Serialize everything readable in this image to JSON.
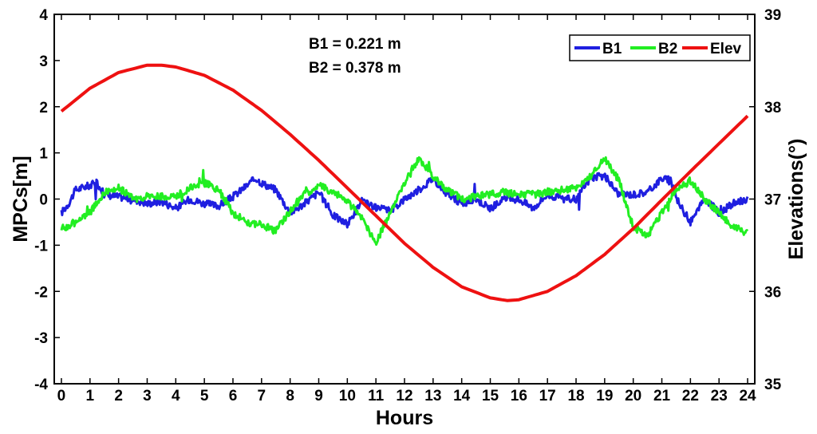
{
  "chart_data": {
    "type": "line",
    "xlabel": "Hours",
    "ylabel_left": "MPCs[m]",
    "ylabel_right": "Elevations(°)",
    "xlim": [
      -0.25,
      24.25
    ],
    "ylim_left": [
      -4,
      4
    ],
    "ylim_right": [
      35,
      39
    ],
    "xticks": [
      "0",
      "1",
      "2",
      "3",
      "4",
      "5",
      "6",
      "7",
      "8",
      "9",
      "10",
      "11",
      "12",
      "13",
      "14",
      "15",
      "16",
      "17",
      "18",
      "19",
      "20",
      "21",
      "22",
      "23",
      "24"
    ],
    "yticks_left": [
      "4",
      "3",
      "2",
      "1",
      "0",
      "-1",
      "-2",
      "-3",
      "-4"
    ],
    "yticks_right": [
      "39",
      "38",
      "37",
      "36",
      "35"
    ],
    "grid": false,
    "legend_position": "top-right",
    "annotations": [
      "B1 = 0.221 m",
      "B2 = 0.378 m"
    ],
    "colors": {
      "B1": "#1f1fe0",
      "B2": "#22ee22",
      "Elev": "#ee1111"
    },
    "series": [
      {
        "name": "B1",
        "axis": "left",
        "x": [
          0,
          0.25,
          0.5,
          1,
          1.25,
          1.5,
          2,
          2.5,
          3,
          3.5,
          4,
          4.5,
          5,
          5.5,
          6,
          6.5,
          6.8,
          7,
          7.5,
          8,
          8.5,
          9,
          9.5,
          10,
          10.5,
          11,
          11.5,
          12,
          12.5,
          13,
          13.5,
          14,
          14.5,
          15,
          15.5,
          16,
          16.5,
          17,
          17.5,
          18,
          18.5,
          19,
          19.5,
          20,
          20.5,
          21,
          21.3,
          21.6,
          22,
          22.5,
          23,
          23.5,
          24
        ],
        "y": [
          -0.3,
          -0.1,
          0.2,
          0.3,
          0.35,
          0.1,
          0.05,
          0.0,
          -0.1,
          -0.05,
          -0.2,
          0.0,
          -0.1,
          -0.15,
          0.05,
          0.3,
          0.45,
          0.35,
          0.2,
          -0.3,
          -0.1,
          0.15,
          -0.35,
          -0.55,
          -0.05,
          -0.2,
          -0.25,
          0.0,
          0.2,
          0.45,
          0.1,
          -0.1,
          0.0,
          -0.2,
          0.0,
          0.0,
          -0.2,
          0.1,
          0.0,
          0.0,
          0.45,
          0.5,
          0.1,
          0.1,
          0.15,
          0.45,
          0.4,
          -0.1,
          -0.5,
          0.0,
          -0.3,
          -0.1,
          0.0
        ]
      },
      {
        "name": "B2",
        "axis": "left",
        "x": [
          0,
          0.5,
          1,
          1.5,
          2,
          2.5,
          3,
          3.5,
          4,
          4.5,
          5,
          5.5,
          6,
          6.5,
          7,
          7.5,
          8,
          8.5,
          9,
          9.5,
          10,
          10.5,
          11,
          11.5,
          12,
          12.5,
          13,
          13.5,
          14,
          14.5,
          15,
          15.5,
          16,
          16.5,
          17,
          17.5,
          18,
          18.5,
          19,
          19.5,
          20,
          20.5,
          21,
          21.5,
          22,
          22.5,
          23,
          23.5,
          24
        ],
        "y": [
          -0.65,
          -0.5,
          -0.3,
          0.15,
          0.25,
          0.0,
          0.05,
          0.05,
          0.05,
          0.25,
          0.35,
          0.2,
          -0.3,
          -0.5,
          -0.55,
          -0.7,
          -0.25,
          0.1,
          0.3,
          0.15,
          -0.05,
          -0.4,
          -0.95,
          -0.3,
          0.35,
          0.9,
          0.5,
          0.2,
          0.0,
          0.05,
          0.1,
          0.15,
          0.1,
          0.1,
          0.15,
          0.2,
          0.25,
          0.5,
          0.9,
          0.4,
          -0.6,
          -0.8,
          -0.3,
          0.2,
          0.4,
          0.0,
          -0.3,
          -0.6,
          -0.75
        ]
      },
      {
        "name": "Elev",
        "axis": "right",
        "function_note": "",
        "x": [
          0,
          1,
          2,
          3,
          3.5,
          4,
          5,
          6,
          7,
          8,
          9,
          10,
          11,
          12,
          13,
          14,
          15,
          15.6,
          16,
          17,
          18,
          19,
          20,
          21,
          22,
          23,
          24
        ],
        "y": [
          37.95,
          38.2,
          38.37,
          38.45,
          38.45,
          38.43,
          38.34,
          38.18,
          37.96,
          37.7,
          37.42,
          37.12,
          36.82,
          36.52,
          36.26,
          36.05,
          35.93,
          35.9,
          35.91,
          36.0,
          36.17,
          36.4,
          36.68,
          36.99,
          37.3,
          37.6,
          37.9
        ]
      }
    ]
  }
}
